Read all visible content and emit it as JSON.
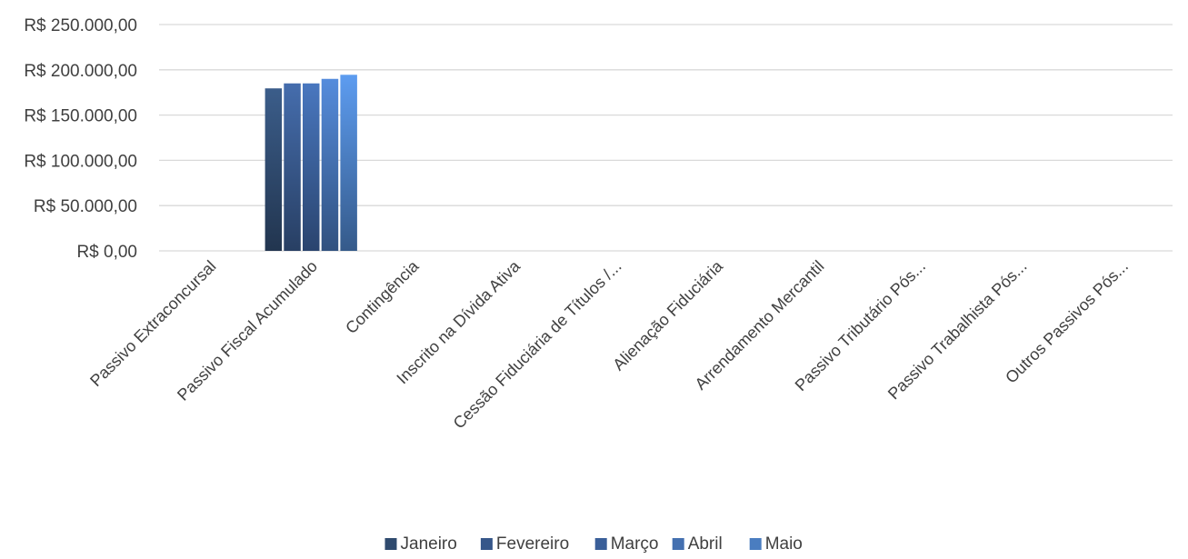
{
  "chart_data": {
    "type": "bar",
    "title": "",
    "xlabel": "",
    "ylabel": "",
    "ylim": [
      0,
      250000
    ],
    "y_ticks": [
      0,
      50000,
      100000,
      150000,
      200000,
      250000
    ],
    "y_tick_labels": [
      "R$ 0,00",
      "R$ 50.000,00",
      "R$ 100.000,00",
      "R$ 150.000,00",
      "R$ 200.000,00",
      "R$ 250.000,00"
    ],
    "grid": true,
    "legend_position": "bottom",
    "categories": [
      "Passivo Extraconcursal",
      "Passivo Fiscal Acumulado",
      "Contingência",
      "Inscrito na Dívida Ativa",
      "Cessão Fiduciária de Títulos /...",
      "Alienação Fiduciária",
      "Arrendamento Mercantil",
      "Passivo Tributário Pós...",
      "Passivo Trabalhista Pós...",
      "Outros Passivos Pós..."
    ],
    "series": [
      {
        "name": "Janeiro",
        "color": "#2f4a6e",
        "values": [
          0,
          179500,
          0,
          0,
          0,
          0,
          0,
          0,
          0,
          0
        ]
      },
      {
        "name": "Fevereiro",
        "color": "#37578a",
        "values": [
          0,
          185000,
          0,
          0,
          0,
          0,
          0,
          0,
          0,
          0
        ]
      },
      {
        "name": "Março",
        "color": "#3a5f99",
        "values": [
          0,
          185000,
          0,
          0,
          0,
          0,
          0,
          0,
          0,
          0
        ]
      },
      {
        "name": "Abril",
        "color": "#4470b0",
        "values": [
          0,
          190000,
          0,
          0,
          0,
          0,
          0,
          0,
          0,
          0
        ]
      },
      {
        "name": "Maio",
        "color": "#4a7dc0",
        "values": [
          0,
          194500,
          0,
          0,
          0,
          0,
          0,
          0,
          0,
          0
        ]
      }
    ]
  }
}
